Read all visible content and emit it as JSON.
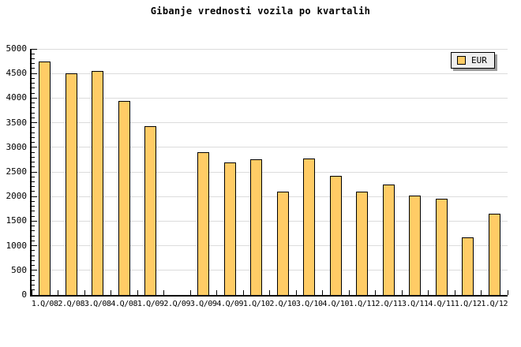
{
  "title": "Gibanje vrednosti vozila po kvartalih",
  "legend": {
    "label": "EUR",
    "position": "top-right"
  },
  "colors": {
    "background": "#FFFFFF",
    "bar_fill": "#FFCC66",
    "bar_border": "#000000",
    "gridline": "#DCDCDC",
    "axis": "#000000",
    "legend_bg": "#EFEFEF",
    "legend_shadow": "#9E9E9E"
  },
  "y_axis": {
    "min": 0,
    "max": 5000,
    "major_step": 500,
    "minor_step": 100,
    "tick_labels": [
      "0",
      "500",
      "1000",
      "1500",
      "2000",
      "2500",
      "3000",
      "3500",
      "4000",
      "4500",
      "5000"
    ]
  },
  "chart_data": {
    "type": "bar",
    "title": "Gibanje vrednosti vozila po kvartalih",
    "categories": [
      "1.Q/08",
      "2.Q/08",
      "3.Q/08",
      "4.Q/08",
      "1.Q/09",
      "2.Q/09",
      "3.Q/09",
      "4.Q/09",
      "1.Q/10",
      "2.Q/10",
      "3.Q/10",
      "4.Q/10",
      "1.Q/11",
      "2.Q/11",
      "3.Q/11",
      "4.Q/11",
      "1.Q/12",
      "1.Q/12"
    ],
    "series": [
      {
        "name": "EUR",
        "values": [
          4750,
          4500,
          4550,
          3950,
          3425,
          null,
          2900,
          2700,
          2750,
          2100,
          2775,
          2425,
          2100,
          2240,
          2020,
          1950,
          1175,
          1650
        ]
      }
    ],
    "ylim": [
      0,
      5000
    ],
    "xlabel": "",
    "ylabel": "",
    "grid": true,
    "legend_position": "top-right",
    "notes": "no bar rendered for 2.Q/09 (missing value)"
  }
}
